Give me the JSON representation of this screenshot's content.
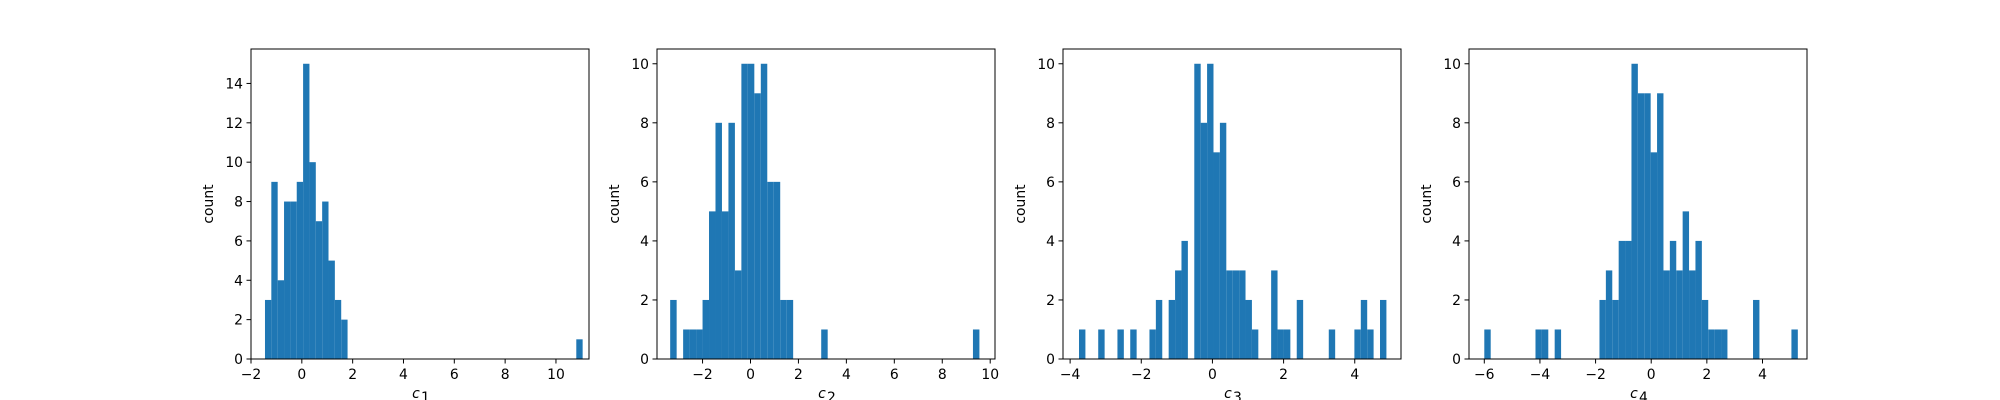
{
  "figure": {
    "background": "#ffffff"
  },
  "style": {
    "bar_color": "#1f77b4",
    "axis_color": "#000000"
  },
  "chart_data": [
    {
      "type": "bar",
      "subtype": "histogram",
      "title": "",
      "xlabel": "c",
      "xlabel_subscript": "1",
      "ylabel": "count",
      "xlim": [
        -2.0,
        11.3
      ],
      "ylim": [
        0,
        15.75
      ],
      "xticks": [
        -2,
        0,
        2,
        4,
        6,
        8,
        10
      ],
      "yticks": [
        0,
        2,
        4,
        6,
        8,
        10,
        12,
        14
      ],
      "grid": false,
      "bins": [
        {
          "x0": -1.45,
          "x1": -1.2,
          "count": 3
        },
        {
          "x0": -1.2,
          "x1": -0.95,
          "count": 9
        },
        {
          "x0": -0.95,
          "x1": -0.7,
          "count": 4
        },
        {
          "x0": -0.7,
          "x1": -0.45,
          "count": 8
        },
        {
          "x0": -0.45,
          "x1": -0.2,
          "count": 8
        },
        {
          "x0": -0.2,
          "x1": 0.05,
          "count": 9
        },
        {
          "x0": 0.05,
          "x1": 0.3,
          "count": 15
        },
        {
          "x0": 0.3,
          "x1": 0.55,
          "count": 10
        },
        {
          "x0": 0.55,
          "x1": 0.8,
          "count": 7
        },
        {
          "x0": 0.8,
          "x1": 1.05,
          "count": 8
        },
        {
          "x0": 1.05,
          "x1": 1.3,
          "count": 5
        },
        {
          "x0": 1.3,
          "x1": 1.55,
          "count": 3
        },
        {
          "x0": 1.55,
          "x1": 1.8,
          "count": 2
        },
        {
          "x0": 10.8,
          "x1": 11.05,
          "count": 1
        }
      ]
    },
    {
      "type": "bar",
      "subtype": "histogram",
      "title": "",
      "xlabel": "c",
      "xlabel_subscript": "2",
      "ylabel": "count",
      "xlim": [
        -3.9,
        10.2
      ],
      "ylim": [
        0,
        10.5
      ],
      "xticks": [
        -2,
        0,
        2,
        4,
        6,
        8,
        10
      ],
      "yticks": [
        0,
        2,
        4,
        6,
        8,
        10
      ],
      "grid": false,
      "bins": [
        {
          "x0": -3.35,
          "x1": -3.08,
          "count": 2
        },
        {
          "x0": -2.81,
          "x1": -2.54,
          "count": 1
        },
        {
          "x0": -2.54,
          "x1": -2.27,
          "count": 1
        },
        {
          "x0": -2.27,
          "x1": -2.0,
          "count": 1
        },
        {
          "x0": -2.0,
          "x1": -1.73,
          "count": 2
        },
        {
          "x0": -1.73,
          "x1": -1.46,
          "count": 5
        },
        {
          "x0": -1.46,
          "x1": -1.19,
          "count": 8
        },
        {
          "x0": -1.19,
          "x1": -0.92,
          "count": 5
        },
        {
          "x0": -0.92,
          "x1": -0.65,
          "count": 8
        },
        {
          "x0": -0.65,
          "x1": -0.38,
          "count": 3
        },
        {
          "x0": -0.38,
          "x1": -0.11,
          "count": 10
        },
        {
          "x0": -0.11,
          "x1": 0.16,
          "count": 10
        },
        {
          "x0": 0.16,
          "x1": 0.43,
          "count": 9
        },
        {
          "x0": 0.43,
          "x1": 0.7,
          "count": 10
        },
        {
          "x0": 0.7,
          "x1": 0.97,
          "count": 6
        },
        {
          "x0": 0.97,
          "x1": 1.24,
          "count": 6
        },
        {
          "x0": 1.24,
          "x1": 1.51,
          "count": 2
        },
        {
          "x0": 1.51,
          "x1": 1.78,
          "count": 2
        },
        {
          "x0": 2.95,
          "x1": 3.22,
          "count": 1
        },
        {
          "x0": 9.28,
          "x1": 9.55,
          "count": 1
        }
      ]
    },
    {
      "type": "bar",
      "subtype": "histogram",
      "title": "",
      "xlabel": "c",
      "xlabel_subscript": "3",
      "ylabel": "count",
      "xlim": [
        -4.2,
        5.3
      ],
      "ylim": [
        0,
        10.5
      ],
      "xticks": [
        -4,
        -2,
        0,
        2,
        4
      ],
      "yticks": [
        0,
        2,
        4,
        6,
        8,
        10
      ],
      "grid": false,
      "bins": [
        {
          "x0": -3.75,
          "x1": -3.57,
          "count": 1
        },
        {
          "x0": -3.21,
          "x1": -3.03,
          "count": 1
        },
        {
          "x0": -2.67,
          "x1": -2.49,
          "count": 1
        },
        {
          "x0": -2.31,
          "x1": -2.13,
          "count": 1
        },
        {
          "x0": -1.77,
          "x1": -1.59,
          "count": 1
        },
        {
          "x0": -1.59,
          "x1": -1.41,
          "count": 2
        },
        {
          "x0": -1.23,
          "x1": -1.05,
          "count": 2
        },
        {
          "x0": -1.05,
          "x1": -0.87,
          "count": 3
        },
        {
          "x0": -0.87,
          "x1": -0.69,
          "count": 4
        },
        {
          "x0": -0.51,
          "x1": -0.33,
          "count": 10
        },
        {
          "x0": -0.33,
          "x1": -0.15,
          "count": 8
        },
        {
          "x0": -0.15,
          "x1": 0.03,
          "count": 10
        },
        {
          "x0": 0.03,
          "x1": 0.21,
          "count": 7
        },
        {
          "x0": 0.21,
          "x1": 0.39,
          "count": 8
        },
        {
          "x0": 0.39,
          "x1": 0.57,
          "count": 3
        },
        {
          "x0": 0.57,
          "x1": 0.75,
          "count": 3
        },
        {
          "x0": 0.75,
          "x1": 0.93,
          "count": 3
        },
        {
          "x0": 0.93,
          "x1": 1.11,
          "count": 2
        },
        {
          "x0": 1.11,
          "x1": 1.29,
          "count": 1
        },
        {
          "x0": 1.65,
          "x1": 1.83,
          "count": 3
        },
        {
          "x0": 1.83,
          "x1": 2.01,
          "count": 1
        },
        {
          "x0": 2.01,
          "x1": 2.19,
          "count": 1
        },
        {
          "x0": 2.37,
          "x1": 2.55,
          "count": 2
        },
        {
          "x0": 3.27,
          "x1": 3.45,
          "count": 1
        },
        {
          "x0": 3.99,
          "x1": 4.17,
          "count": 1
        },
        {
          "x0": 4.17,
          "x1": 4.35,
          "count": 2
        },
        {
          "x0": 4.35,
          "x1": 4.53,
          "count": 1
        },
        {
          "x0": 4.71,
          "x1": 4.89,
          "count": 2
        }
      ]
    },
    {
      "type": "bar",
      "subtype": "histogram",
      "title": "",
      "xlabel": "c",
      "xlabel_subscript": "4",
      "ylabel": "count",
      "xlim": [
        -6.55,
        5.6
      ],
      "ylim": [
        0,
        10.5
      ],
      "xticks": [
        -6,
        -4,
        -2,
        0,
        2,
        4
      ],
      "yticks": [
        0,
        2,
        4,
        6,
        8,
        10
      ],
      "grid": false,
      "bins": [
        {
          "x0": -6.0,
          "x1": -5.77,
          "count": 1
        },
        {
          "x0": -4.16,
          "x1": -3.93,
          "count": 1
        },
        {
          "x0": -3.93,
          "x1": -3.7,
          "count": 1
        },
        {
          "x0": -3.47,
          "x1": -3.24,
          "count": 1
        },
        {
          "x0": -1.86,
          "x1": -1.63,
          "count": 2
        },
        {
          "x0": -1.63,
          "x1": -1.4,
          "count": 3
        },
        {
          "x0": -1.4,
          "x1": -1.17,
          "count": 2
        },
        {
          "x0": -1.17,
          "x1": -0.94,
          "count": 4
        },
        {
          "x0": -0.94,
          "x1": -0.71,
          "count": 4
        },
        {
          "x0": -0.71,
          "x1": -0.48,
          "count": 10
        },
        {
          "x0": -0.48,
          "x1": -0.25,
          "count": 9
        },
        {
          "x0": -0.25,
          "x1": -0.02,
          "count": 9
        },
        {
          "x0": -0.02,
          "x1": 0.21,
          "count": 7
        },
        {
          "x0": 0.21,
          "x1": 0.44,
          "count": 9
        },
        {
          "x0": 0.44,
          "x1": 0.67,
          "count": 3
        },
        {
          "x0": 0.67,
          "x1": 0.9,
          "count": 4
        },
        {
          "x0": 0.9,
          "x1": 1.13,
          "count": 3
        },
        {
          "x0": 1.13,
          "x1": 1.36,
          "count": 5
        },
        {
          "x0": 1.36,
          "x1": 1.59,
          "count": 3
        },
        {
          "x0": 1.59,
          "x1": 1.82,
          "count": 4
        },
        {
          "x0": 1.82,
          "x1": 2.05,
          "count": 2
        },
        {
          "x0": 2.05,
          "x1": 2.28,
          "count": 1
        },
        {
          "x0": 2.28,
          "x1": 2.51,
          "count": 1
        },
        {
          "x0": 2.51,
          "x1": 2.74,
          "count": 1
        },
        {
          "x0": 3.66,
          "x1": 3.89,
          "count": 2
        },
        {
          "x0": 5.04,
          "x1": 5.27,
          "count": 1
        }
      ]
    }
  ]
}
